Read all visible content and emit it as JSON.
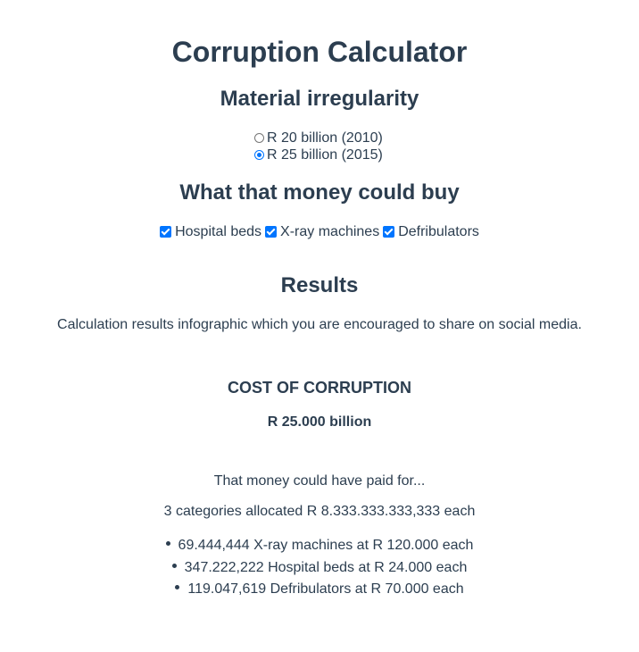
{
  "title": "Corruption Calculator",
  "irregularity": {
    "heading": "Material irregularity",
    "options": [
      {
        "label": "R 20 billion (2010)",
        "checked": false
      },
      {
        "label": "R 25 billion (2015)",
        "checked": true
      }
    ]
  },
  "buy": {
    "heading": "What that money could buy",
    "options": [
      {
        "label": "Hospital beds",
        "checked": true
      },
      {
        "label": "X-ray machines",
        "checked": true
      },
      {
        "label": "Defribulators",
        "checked": true
      }
    ]
  },
  "results": {
    "heading": "Results",
    "description": "Calculation results infographic which you are encouraged to share on social media.",
    "cost_title": "COST OF CORRUPTION",
    "cost_value": "R 25.000 billion",
    "could_text": "That money could have paid for...",
    "allocation": "3 categories allocated R 8.333.333.333,333 each",
    "items": [
      "69.444,444 X-ray machines at R 120.000 each",
      "347.222,222 Hospital beds at R 24.000 each",
      "119.047,619 Defribulators at R 70.000 each"
    ]
  },
  "colors": {
    "text": "#2c3e50",
    "accent": "#0075ff"
  }
}
